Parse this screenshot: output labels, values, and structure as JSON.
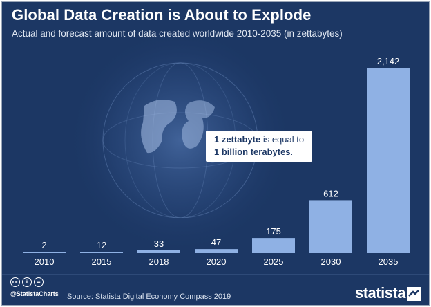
{
  "header": {
    "title": "Global Data Creation is About to Explode",
    "subtitle": "Actual and forecast amount of data created worldwide 2010-2035 (in zettabytes)"
  },
  "callout": {
    "part1_bold": "1 zettabyte",
    "part1_rest": " is equal to",
    "part2_bold": "1 billion terabytes",
    "part2_rest": "."
  },
  "footer": {
    "handle": "@StatistaCharts",
    "source": "Source: Statista Digital Economy Compass 2019",
    "brand": "statista",
    "license_icons": [
      "cc",
      "by",
      "nd"
    ]
  },
  "colors": {
    "background": "#1c3764",
    "bar": "#8fb1e4",
    "text": "#ffffff"
  },
  "chart_data": {
    "type": "bar",
    "title": "Global Data Creation is About to Explode",
    "subtitle": "Actual and forecast amount of data created worldwide 2010-2035 (in zettabytes)",
    "categories": [
      "2010",
      "2015",
      "2018",
      "2020",
      "2025",
      "2030",
      "2035"
    ],
    "values": [
      2,
      12,
      33,
      47,
      175,
      612,
      2142
    ],
    "value_labels": [
      "2",
      "12",
      "33",
      "47",
      "175",
      "612",
      "2,142"
    ],
    "xlabel": "",
    "ylabel": "",
    "ylim": [
      0,
      2142
    ],
    "grid": false,
    "legend": "none"
  }
}
